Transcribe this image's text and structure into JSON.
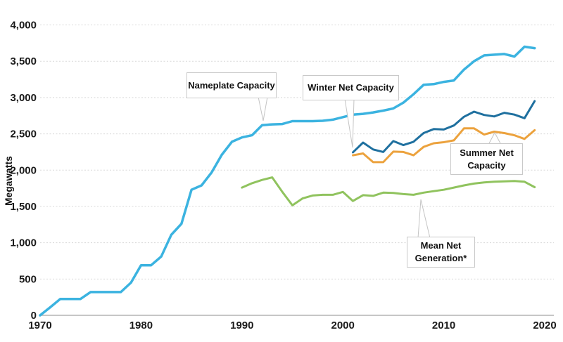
{
  "chart_data": {
    "type": "line",
    "title": "",
    "xlabel": "",
    "ylabel": "Megawatts",
    "xlim": [
      1970,
      2020
    ],
    "ylim": [
      0,
      4000
    ],
    "grid": true,
    "legend_position": "inline-callout-labels",
    "axis_color": "#b3b3b3",
    "grid_color": "#d8d8d8",
    "text_color": "#1a1a1a",
    "y_ticks": [
      {
        "value": 4000,
        "label": "4,000"
      },
      {
        "value": 3500,
        "label": "3,500"
      },
      {
        "value": 3000,
        "label": "3,000"
      },
      {
        "value": 2500,
        "label": "2,500"
      },
      {
        "value": 2000,
        "label": "2,000"
      },
      {
        "value": 1500,
        "label": "1,500"
      },
      {
        "value": 1000,
        "label": "1,000"
      },
      {
        "value": 500,
        "label": "500"
      },
      {
        "value": 0,
        "label": "0"
      }
    ],
    "x_ticks": [
      {
        "value": 1970,
        "label": "1970"
      },
      {
        "value": 1980,
        "label": "1980"
      },
      {
        "value": 1990,
        "label": "1990"
      },
      {
        "value": 2000,
        "label": "2000"
      },
      {
        "value": 2010,
        "label": "2010"
      },
      {
        "value": 2020,
        "label": "2020"
      }
    ],
    "series": [
      {
        "name": "Nameplate Capacity",
        "color": "#3bb3e0",
        "stroke_width": 3.5,
        "start_year": 1970,
        "values": [
          0,
          110,
          225,
          225,
          225,
          320,
          320,
          320,
          320,
          450,
          690,
          690,
          810,
          1110,
          1260,
          1730,
          1790,
          1970,
          2210,
          2390,
          2450,
          2480,
          2620,
          2630,
          2635,
          2675,
          2675,
          2675,
          2680,
          2695,
          2730,
          2765,
          2775,
          2795,
          2820,
          2850,
          2930,
          3045,
          3175,
          3185,
          3215,
          3235,
          3385,
          3500,
          3580,
          3590,
          3600,
          3565,
          3700,
          3680
        ]
      },
      {
        "name": "Winter Net Capacity",
        "color": "#1f709f",
        "stroke_width": 3,
        "start_year": 2001,
        "values": [
          2245,
          2380,
          2285,
          2250,
          2400,
          2345,
          2390,
          2510,
          2565,
          2560,
          2615,
          2735,
          2805,
          2760,
          2740,
          2790,
          2765,
          2715,
          2950
        ]
      },
      {
        "name": "Summer Net Capacity",
        "color": "#eca23d",
        "stroke_width": 3,
        "start_year": 2001,
        "values": [
          2205,
          2230,
          2110,
          2110,
          2255,
          2250,
          2205,
          2320,
          2370,
          2385,
          2410,
          2575,
          2575,
          2490,
          2530,
          2510,
          2480,
          2430,
          2550
        ]
      },
      {
        "name": "Mean Net Generation*",
        "color": "#90c35e",
        "stroke_width": 3,
        "start_year": 1990,
        "values": [
          1760,
          1820,
          1865,
          1900,
          1700,
          1515,
          1610,
          1650,
          1660,
          1660,
          1700,
          1575,
          1655,
          1645,
          1690,
          1685,
          1670,
          1660,
          1690,
          1710,
          1730,
          1760,
          1790,
          1815,
          1830,
          1840,
          1845,
          1850,
          1840,
          1765
        ]
      }
    ],
    "annotations": [
      {
        "label": "Nameplate Capacity",
        "series": "Nameplate Capacity"
      },
      {
        "label": "Winter Net Capacity",
        "series": "Winter Net Capacity"
      },
      {
        "label": "Summer Net Capacity",
        "series": "Summer Net Capacity"
      },
      {
        "label": "Mean Net Generation*",
        "series": "Mean Net Generation*"
      }
    ]
  }
}
